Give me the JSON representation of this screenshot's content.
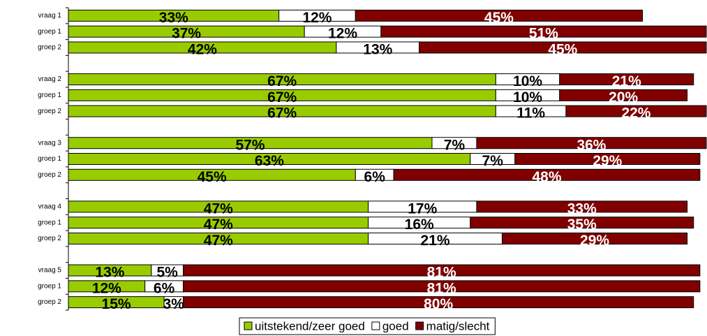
{
  "chart_data": {
    "type": "stacked-bar-horizontal",
    "categories": [
      "vraag 1",
      "groep 1",
      "groep 2",
      null,
      "vraag 2",
      "groep 1",
      "groep 2",
      null,
      "vraag 3",
      "groep 1",
      "groep 2",
      null,
      "vraag 4",
      "groep 1",
      "groep 2",
      null,
      "vraag 5",
      "groep 1",
      "groep 2"
    ],
    "xlim": [
      0,
      100
    ],
    "legend": "bottom",
    "series": [
      {
        "name": "uitstekend/zeer goed",
        "color": "#99cc00",
        "label_color": "#000000",
        "values": [
          33,
          37,
          42,
          null,
          67,
          67,
          67,
          null,
          57,
          63,
          45,
          null,
          47,
          47,
          47,
          null,
          13,
          12,
          15
        ],
        "value_labels": [
          "33%",
          "37%",
          "42%",
          null,
          "67%",
          "67%",
          "67%",
          null,
          "57%",
          "63%",
          "45%",
          null,
          "47%",
          "47%",
          "47%",
          null,
          "13%",
          "12%",
          "15%"
        ]
      },
      {
        "name": "goed",
        "color": "#ffffff",
        "label_color": "#000000",
        "values": [
          12,
          12,
          13,
          null,
          10,
          10,
          11,
          null,
          7,
          7,
          6,
          null,
          17,
          16,
          21,
          null,
          5,
          6,
          3
        ],
        "value_labels": [
          "12%",
          "12%",
          "13%",
          null,
          "10%",
          "10%",
          "11%",
          null,
          "7%",
          "7%",
          "6%",
          null,
          "17%",
          "16%",
          "21%",
          null,
          "5%",
          "6%",
          "3%"
        ]
      },
      {
        "name": "matig/slecht",
        "color": "#800000",
        "label_color": "#ffffff",
        "values": [
          45,
          51,
          45,
          null,
          21,
          20,
          22,
          null,
          36,
          29,
          48,
          null,
          33,
          35,
          29,
          null,
          81,
          81,
          80
        ],
        "value_labels": [
          "45%",
          "51%",
          "45%",
          null,
          "21%",
          "20%",
          "22%",
          null,
          "36%",
          "29%",
          "48%",
          null,
          "33%",
          "35%",
          "29%",
          null,
          "81%",
          "81%",
          "80%"
        ]
      }
    ]
  }
}
